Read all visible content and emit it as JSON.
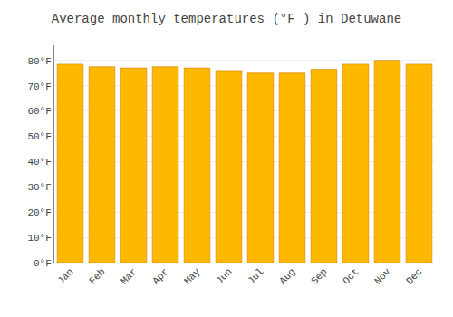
{
  "chart_data": {
    "type": "bar",
    "title": "Average monthly temperatures (°F ) in Detuwane",
    "categories": [
      "Jan",
      "Feb",
      "Mar",
      "Apr",
      "May",
      "Jun",
      "Jul",
      "Aug",
      "Sep",
      "Oct",
      "Nov",
      "Dec"
    ],
    "values": [
      78.5,
      77.5,
      77.0,
      77.5,
      77.0,
      76.0,
      75.0,
      75.0,
      76.5,
      78.5,
      80.0,
      78.5
    ],
    "color": "#FFB800",
    "ylim": [
      0,
      86
    ],
    "yticks": [
      {
        "value": 0,
        "label": "0°F"
      },
      {
        "value": 10,
        "label": "10°F"
      },
      {
        "value": 20,
        "label": "20°F"
      },
      {
        "value": 30,
        "label": "30°F"
      },
      {
        "value": 40,
        "label": "40°F"
      },
      {
        "value": 50,
        "label": "50°F"
      },
      {
        "value": 60,
        "label": "60°F"
      },
      {
        "value": 70,
        "label": "70°F"
      },
      {
        "value": 80,
        "label": "80°F"
      }
    ],
    "grid": true
  }
}
